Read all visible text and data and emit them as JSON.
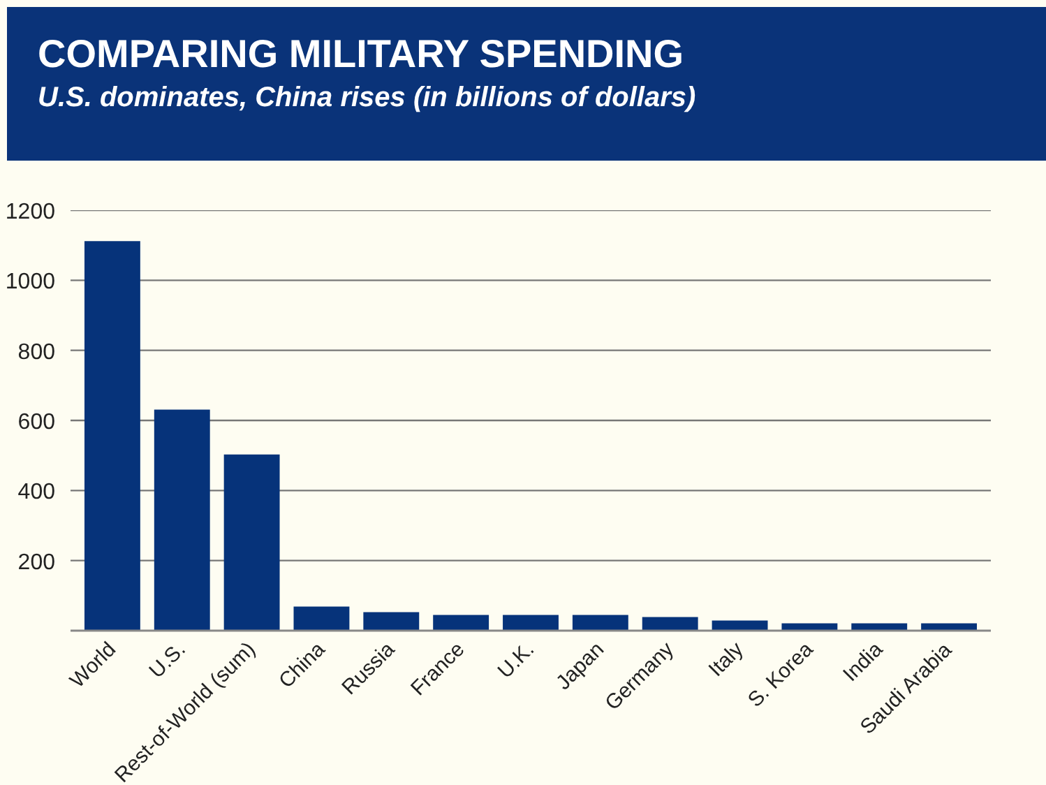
{
  "chart_data": {
    "type": "bar",
    "title": "COMPARING MILITARY SPENDING",
    "subtitle": "U.S. dominates, China rises (in billions of dollars)",
    "categories": [
      "World",
      "U.S.",
      "Rest-of-World (sum)",
      "China",
      "Russia",
      "France",
      "U.K.",
      "Japan",
      "Germany",
      "Italy",
      "S. Korea",
      "India",
      "Saudi Arabia"
    ],
    "values": [
      1112,
      631,
      503,
      69,
      53,
      45,
      45,
      45,
      39,
      29,
      21,
      21,
      21
    ],
    "color": "#06337a",
    "ylim": [
      0,
      1200
    ],
    "yticks": [
      200,
      400,
      600,
      800,
      1000,
      1200
    ],
    "grid": "y"
  }
}
